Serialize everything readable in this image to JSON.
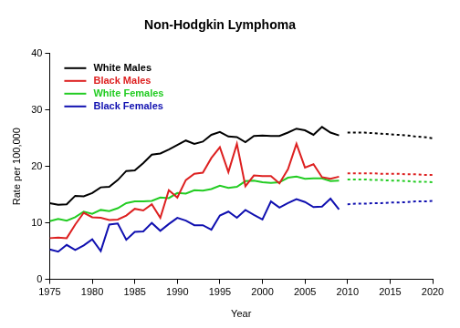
{
  "chart_data": {
    "type": "line",
    "title": "Non-Hodgkin Lymphoma",
    "x_label": "Year",
    "y_label": "Rate per 100,000",
    "x": [
      1975,
      1976,
      1977,
      1978,
      1979,
      1980,
      1981,
      1982,
      1983,
      1984,
      1985,
      1986,
      1987,
      1988,
      1989,
      1990,
      1991,
      1992,
      1993,
      1994,
      1995,
      1996,
      1997,
      1998,
      1999,
      2000,
      2001,
      2002,
      2003,
      2004,
      2005,
      2006,
      2007,
      2008,
      2009,
      2010,
      2011,
      2012,
      2013,
      2014,
      2015,
      2016,
      2017,
      2018,
      2019,
      2020
    ],
    "xlim": [
      1975,
      2020
    ],
    "xticks": [
      1975,
      1980,
      1985,
      1990,
      1995,
      2000,
      2005,
      2010,
      2015,
      2020
    ],
    "ylim": [
      0,
      40
    ],
    "yticks": [
      0,
      10,
      20,
      30,
      40
    ],
    "grid": false,
    "legend": "top-left",
    "series": [
      {
        "name": "White Males",
        "color": "#000000",
        "values": [
          13.5,
          13.2,
          13.3,
          14.8,
          14.7,
          15.3,
          16.3,
          16.4,
          17.6,
          19.2,
          19.3,
          20.6,
          22.1,
          22.3,
          23.0,
          23.8,
          24.6,
          24.0,
          24.4,
          25.6,
          26.1,
          25.3,
          25.2,
          24.3,
          25.4,
          25.5,
          25.4,
          25.4,
          26.0,
          26.7,
          26.4,
          25.6,
          27.0,
          26.0,
          25.5,
          null,
          null,
          null,
          null,
          null,
          null,
          null,
          null,
          null,
          null,
          null
        ],
        "projection": [
          null,
          null,
          null,
          null,
          null,
          null,
          null,
          null,
          null,
          null,
          null,
          null,
          null,
          null,
          null,
          null,
          null,
          null,
          null,
          null,
          null,
          null,
          null,
          null,
          null,
          null,
          null,
          null,
          null,
          null,
          null,
          null,
          null,
          null,
          null,
          26.0,
          26.0,
          26.0,
          25.9,
          25.8,
          25.7,
          25.6,
          25.5,
          25.3,
          25.2,
          25.0
        ]
      },
      {
        "name": "Black Males",
        "color": "#dd2020",
        "values": [
          7.3,
          7.4,
          7.3,
          9.7,
          11.8,
          11.0,
          10.9,
          10.5,
          10.6,
          11.3,
          12.5,
          12.2,
          13.3,
          10.9,
          15.8,
          14.5,
          17.6,
          18.7,
          18.9,
          21.5,
          23.4,
          19.0,
          24.0,
          16.5,
          18.4,
          18.3,
          18.3,
          17.0,
          19.5,
          24.0,
          19.8,
          20.4,
          18.1,
          17.8,
          18.2,
          null,
          null,
          null,
          null,
          null,
          null,
          null,
          null,
          null,
          null,
          null
        ],
        "projection": [
          null,
          null,
          null,
          null,
          null,
          null,
          null,
          null,
          null,
          null,
          null,
          null,
          null,
          null,
          null,
          null,
          null,
          null,
          null,
          null,
          null,
          null,
          null,
          null,
          null,
          null,
          null,
          null,
          null,
          null,
          null,
          null,
          null,
          null,
          null,
          18.8,
          18.8,
          18.8,
          18.8,
          18.7,
          18.7,
          18.7,
          18.6,
          18.6,
          18.5,
          18.5
        ]
      },
      {
        "name": "White Females",
        "color": "#22cc22",
        "values": [
          10.3,
          10.7,
          10.4,
          11.0,
          12.0,
          11.6,
          12.3,
          12.1,
          12.6,
          13.5,
          13.8,
          13.8,
          13.9,
          14.5,
          14.4,
          15.3,
          15.2,
          15.8,
          15.7,
          16.0,
          16.6,
          16.2,
          16.4,
          17.4,
          17.5,
          17.2,
          17.1,
          17.2,
          18.0,
          18.2,
          17.8,
          17.9,
          17.9,
          17.4,
          17.5,
          null,
          null,
          null,
          null,
          null,
          null,
          null,
          null,
          null,
          null,
          null
        ],
        "projection": [
          null,
          null,
          null,
          null,
          null,
          null,
          null,
          null,
          null,
          null,
          null,
          null,
          null,
          null,
          null,
          null,
          null,
          null,
          null,
          null,
          null,
          null,
          null,
          null,
          null,
          null,
          null,
          null,
          null,
          null,
          null,
          null,
          null,
          null,
          null,
          17.7,
          17.7,
          17.7,
          17.6,
          17.6,
          17.5,
          17.5,
          17.4,
          17.3,
          17.3,
          17.2
        ]
      },
      {
        "name": "Black Females",
        "color": "#1010b0",
        "values": [
          5.3,
          4.9,
          6.1,
          5.2,
          6.0,
          7.1,
          5.0,
          9.7,
          9.9,
          7.0,
          8.4,
          8.5,
          10.0,
          8.6,
          9.8,
          10.9,
          10.4,
          9.6,
          9.6,
          8.8,
          11.3,
          12.0,
          10.9,
          12.3,
          11.4,
          10.6,
          13.8,
          12.7,
          13.5,
          14.2,
          13.7,
          12.8,
          12.9,
          14.3,
          12.4,
          null,
          null,
          null,
          null,
          null,
          null,
          null,
          null,
          null,
          null,
          null
        ],
        "projection": [
          null,
          null,
          null,
          null,
          null,
          null,
          null,
          null,
          null,
          null,
          null,
          null,
          null,
          null,
          null,
          null,
          null,
          null,
          null,
          null,
          null,
          null,
          null,
          null,
          null,
          null,
          null,
          null,
          null,
          null,
          null,
          null,
          null,
          null,
          null,
          13.3,
          13.4,
          13.4,
          13.5,
          13.5,
          13.6,
          13.6,
          13.7,
          13.8,
          13.8,
          13.9
        ]
      }
    ]
  }
}
